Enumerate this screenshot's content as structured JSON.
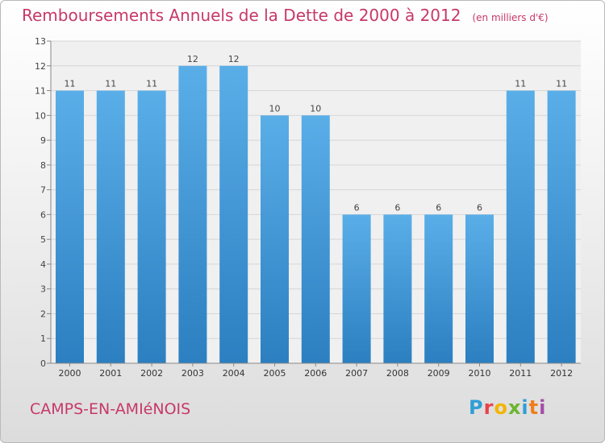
{
  "title": "Remboursements Annuels de la Dette de 2000 à 2012",
  "unit_label": "(en milliers d'€)",
  "commune": "CAMPS-EN-AMIéNOIS",
  "logo_text": "Proxiti",
  "colors": {
    "title": "#c7386a",
    "bar_top": "#5aaee8",
    "bar_bottom": "#2c7fc0"
  },
  "chart_data": {
    "type": "bar",
    "title": "Remboursements Annuels de la Dette de 2000 à 2012",
    "categories": [
      "2000",
      "2001",
      "2002",
      "2003",
      "2004",
      "2005",
      "2006",
      "2007",
      "2008",
      "2009",
      "2010",
      "2011",
      "2012"
    ],
    "values": [
      11,
      11,
      11,
      12,
      12,
      10,
      10,
      6,
      6,
      6,
      6,
      11,
      11
    ],
    "ylim": [
      0,
      13
    ],
    "yticks": [
      0,
      1,
      2,
      3,
      4,
      5,
      6,
      7,
      8,
      9,
      10,
      11,
      12,
      13
    ],
    "grid": true
  }
}
